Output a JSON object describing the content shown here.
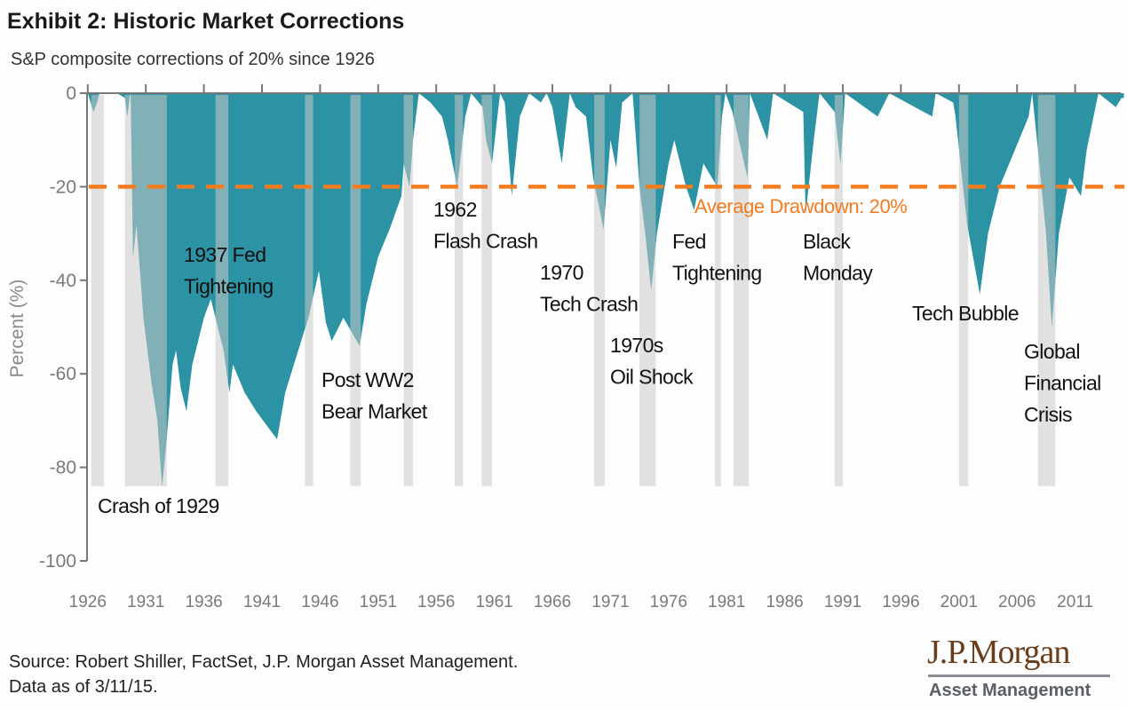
{
  "chart_data": {
    "type": "area",
    "title": "Exhibit 2: Historic Market Corrections",
    "subtitle": "S&P composite corrections of 20%  since 1926",
    "xlabel": "",
    "ylabel": "Percent (%)",
    "xlim": [
      1926,
      2015.2
    ],
    "ylim": [
      -100,
      0
    ],
    "x_ticks": [
      "1926",
      "1931",
      "1936",
      "1941",
      "1946",
      "1951",
      "1956",
      "1961",
      "1966",
      "1971",
      "1976",
      "1981",
      "1986",
      "1991",
      "1996",
      "2001",
      "2006",
      "2011"
    ],
    "y_ticks": [
      "0",
      "-20",
      "-40",
      "-60",
      "-80",
      "-100"
    ],
    "grid": false,
    "legend": "none",
    "colors": {
      "area": "#2b93a3",
      "band": "#e1e1e1",
      "average_line": "#f47c20",
      "axis": "#777777"
    },
    "series": [
      {
        "x": [
          1926.0,
          1926.5,
          1926.8,
          1927.0,
          1928.5,
          1929.2,
          1929.4,
          1929.6,
          1929.7,
          1929.9,
          1930.2,
          1930.8,
          1931.5,
          1932.0,
          1932.4,
          1932.8,
          1933.3,
          1933.6,
          1934.0,
          1934.5,
          1935.0,
          1936.0,
          1936.6,
          1937.7,
          1938.2,
          1938.5,
          1939.5,
          1940.5,
          1942.3,
          1943.0,
          1944.0,
          1945.0,
          1945.9,
          1946.5,
          1947.0,
          1948.0,
          1949.4,
          1950.0,
          1951.0,
          1952.0,
          1953.0,
          1953.2,
          1953.7,
          1954.0,
          1954.5,
          1955.5,
          1956.5,
          1957.0,
          1957.8,
          1958.5,
          1959.0,
          1960.0,
          1960.3,
          1960.8,
          1961.5,
          1961.9,
          1962.5,
          1963.2,
          1964.0,
          1965.0,
          1965.5,
          1966.0,
          1966.8,
          1967.5,
          1968.0,
          1968.9,
          1969.5,
          1970.4,
          1971.0,
          1971.5,
          1972.0,
          1972.9,
          1973.5,
          1974.0,
          1974.5,
          1975.0,
          1976.0,
          1976.5,
          1977.5,
          1978.2,
          1979.0,
          1980.2,
          1980.6,
          1980.9,
          1981.5,
          1982.8,
          1983.0,
          1984.5,
          1985.0,
          1987.6,
          1987.8,
          1988.5,
          1989.0,
          1990.3,
          1990.8,
          1991.2,
          1994.0,
          1995.0,
          1998.7,
          1999.0,
          2000.5,
          2000.7,
          2001.7,
          2002.8,
          2003.5,
          2004.5,
          2005.5,
          2007.0,
          2007.3,
          2007.8,
          2008.5,
          2009.0,
          2009.6,
          2010.5,
          2011.5,
          2012.0,
          2013.0,
          2014.5,
          2015.0,
          2015.2
        ],
        "y": [
          0,
          -4,
          -2,
          0,
          0,
          -1,
          -5,
          -1,
          0,
          -35,
          -28,
          -48,
          -62,
          -70,
          -84,
          -74,
          -58,
          -55,
          -63,
          -68,
          -58,
          -48,
          -44,
          -55,
          -64,
          -58,
          -64,
          -68,
          -74,
          -64,
          -56,
          -48,
          -38,
          -49,
          -53,
          -48,
          -54,
          -45,
          -35,
          -29,
          -22,
          -15,
          -20,
          -10,
          0,
          -2,
          -5,
          -10,
          -20,
          -5,
          0,
          -3,
          -10,
          -15,
          0,
          -2,
          -22,
          -5,
          0,
          -2,
          0,
          -3,
          -15,
          0,
          -3,
          -5,
          -18,
          -29,
          -10,
          -16,
          -2,
          0,
          -20,
          -30,
          -42,
          -30,
          -15,
          -10,
          -20,
          -25,
          -15,
          -20,
          -5,
          0,
          -4,
          -18,
          0,
          -10,
          0,
          -4,
          -26,
          -10,
          0,
          -4,
          -15,
          0,
          -5,
          0,
          -5,
          0,
          -2,
          -5,
          -28,
          -43,
          -30,
          -20,
          -14,
          -5,
          0,
          -12,
          -30,
          -50,
          -30,
          -18,
          -22,
          -12,
          0,
          -3,
          -1,
          -1
        ]
      }
    ],
    "shaded_periods": [
      [
        1926.3,
        1927.4
      ],
      [
        1929.2,
        1932.8
      ],
      [
        1937.0,
        1938.1
      ],
      [
        1944.7,
        1945.4
      ],
      [
        1948.6,
        1949.5
      ],
      [
        1953.2,
        1954.0
      ],
      [
        1957.6,
        1958.3
      ],
      [
        1959.9,
        1960.8
      ],
      [
        1969.6,
        1970.5
      ],
      [
        1973.5,
        1974.9
      ],
      [
        1980.0,
        1980.5
      ],
      [
        1981.6,
        1982.9
      ],
      [
        1990.3,
        1991.0
      ],
      [
        2001.0,
        2001.8
      ],
      [
        2007.8,
        2009.3
      ]
    ],
    "average_drawdown": {
      "value": -20,
      "label": "Average Drawdown: 20%"
    },
    "annotations": [
      {
        "lines": [
          "Crash of 1929"
        ]
      },
      {
        "lines": [
          "1937 Fed",
          "Tightening"
        ]
      },
      {
        "lines": [
          "Post WW2",
          "Bear Market"
        ]
      },
      {
        "lines": [
          "1962",
          "Flash Crash"
        ]
      },
      {
        "lines": [
          "1970",
          "Tech Crash"
        ]
      },
      {
        "lines": [
          "1970s",
          "Oil Shock"
        ]
      },
      {
        "lines": [
          "Fed",
          "Tightening"
        ]
      },
      {
        "lines": [
          "Black",
          "Monday"
        ]
      },
      {
        "lines": [
          "Tech Bubble"
        ]
      },
      {
        "lines": [
          "Global",
          "Financial",
          "Crisis"
        ]
      }
    ]
  },
  "footer": {
    "source": "Source: Robert Shiller, FactSet, J.P. Morgan Asset Management.",
    "data_as_of": "Data as of 3/11/15.",
    "logo_main": "J.P.Morgan",
    "logo_sub": "Asset Management"
  }
}
